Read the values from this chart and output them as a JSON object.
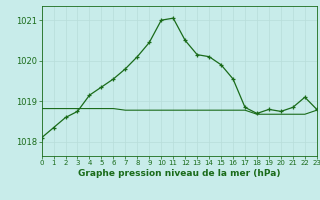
{
  "title": "Graphe pression niveau de la mer (hPa)",
  "background_color": "#c8ecea",
  "grid_color": "#b8ddd9",
  "line_color_main": "#1a6b1a",
  "xlim": [
    0,
    23
  ],
  "ylim": [
    1017.65,
    1021.35
  ],
  "yticks": [
    1018,
    1019,
    1020,
    1021
  ],
  "xticks": [
    0,
    1,
    2,
    3,
    4,
    5,
    6,
    7,
    8,
    9,
    10,
    11,
    12,
    13,
    14,
    15,
    16,
    17,
    18,
    19,
    20,
    21,
    22,
    23
  ],
  "hours": [
    0,
    1,
    2,
    3,
    4,
    5,
    6,
    7,
    8,
    9,
    10,
    11,
    12,
    13,
    14,
    15,
    16,
    17,
    18,
    19,
    20,
    21,
    22,
    23
  ],
  "pressure_main": [
    1018.1,
    1018.35,
    1018.6,
    1018.75,
    1019.15,
    1019.35,
    1019.55,
    1019.8,
    1020.1,
    1020.45,
    1021.0,
    1021.05,
    1020.5,
    1020.15,
    1020.1,
    1019.9,
    1019.55,
    1018.85,
    1018.7,
    1018.8,
    1018.75,
    1018.85,
    1019.1,
    1018.8
  ],
  "pressure_flat": [
    1018.82,
    1018.82,
    1018.82,
    1018.82,
    1018.82,
    1018.82,
    1018.82,
    1018.78,
    1018.78,
    1018.78,
    1018.78,
    1018.78,
    1018.78,
    1018.78,
    1018.78,
    1018.78,
    1018.78,
    1018.78,
    1018.68,
    1018.68,
    1018.68,
    1018.68,
    1018.68,
    1018.78
  ],
  "xlabel_fontsize": 6.5,
  "ytick_fontsize": 6.0,
  "xtick_fontsize": 5.0
}
